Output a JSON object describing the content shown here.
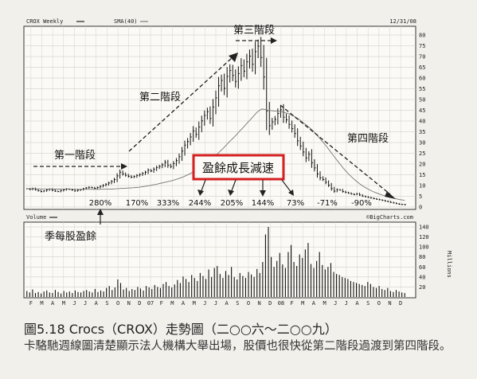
{
  "chart_data": {
    "type": "bar+line",
    "header": {
      "ticker_legend": "CROX Weekly",
      "ma_legend": "SMA(40)",
      "date": "12/31/08",
      "volume_legend": "Volume",
      "source": "©BigCharts.com"
    },
    "price_axis": {
      "ticks": [
        "0",
        "5",
        "10",
        "15",
        "20",
        "25",
        "30",
        "35",
        "40",
        "45",
        "50",
        "55",
        "60",
        "65",
        "70",
        "75",
        "80"
      ],
      "ylim": [
        0,
        80
      ]
    },
    "volume_axis": {
      "ticks": [
        "20",
        "40",
        "60",
        "80",
        "100",
        "120",
        "140"
      ],
      "ylim": [
        0,
        140
      ],
      "unit": "Millions"
    },
    "x_labels": [
      "F",
      "M",
      "A",
      "M",
      "J",
      "J",
      "A",
      "S",
      "O",
      "N",
      "D",
      "07",
      "F",
      "M",
      "A",
      "M",
      "J",
      "J",
      "A",
      "S",
      "O",
      "N",
      "D",
      "08",
      "F",
      "M",
      "A",
      "M",
      "J",
      "J",
      "A",
      "S",
      "O",
      "N",
      "D"
    ],
    "price_close": [
      8.5,
      8.2,
      8.6,
      8.1,
      7.6,
      7.2,
      7.5,
      7.9,
      8.3,
      7.8,
      7.4,
      7.2,
      7.6,
      8.0,
      8.4,
      8.2,
      7.9,
      7.5,
      7.8,
      8.1,
      8.5,
      8.9,
      9.2,
      9.0,
      8.7,
      9.1,
      9.6,
      10.1,
      10.6,
      11.2,
      11.9,
      12.8,
      14.5,
      16.2,
      15.4,
      14.8,
      14.3,
      13.9,
      14.2,
      14.7,
      15.1,
      15.6,
      16.2,
      17.1,
      16.8,
      17.6,
      18.4,
      18.9,
      19.6,
      20.8,
      19.4,
      18.8,
      20.2,
      21.6,
      23.4,
      26.0,
      28.8,
      30.5,
      32.6,
      35.4,
      33.8,
      37.2,
      40.1,
      42.6,
      44.3,
      41.2,
      46.5,
      50.8,
      56.4,
      58.9,
      55.2,
      60.8,
      63.5,
      61.2,
      58.4,
      62.1,
      65.8,
      63.2,
      67.5,
      70.2,
      66.4,
      72.3,
      74.8,
      69.5,
      60.5,
      44.6,
      37.8,
      39.6,
      40.8,
      43.5,
      45.2,
      41.8,
      40.6,
      38.4,
      36.5,
      34.2,
      30.8,
      28.4,
      25.6,
      22.8,
      24.5,
      20.6,
      18.2,
      15.4,
      13.6,
      12.8,
      11.5,
      10.2,
      8.6,
      7.4,
      8.1,
      7.9,
      7.2,
      6.8,
      6.5,
      6.1,
      5.8,
      6.2,
      5.6,
      5.1,
      4.8,
      4.5,
      4.2,
      3.9,
      3.6,
      3.4,
      3.1,
      2.8,
      2.5,
      2.2,
      1.9,
      1.6,
      1.3,
      1.2,
      1.1
    ],
    "sma40": [
      8.5,
      8.48,
      8.47,
      8.45,
      8.43,
      8.41,
      8.4,
      8.39,
      8.38,
      8.36,
      8.35,
      8.34,
      8.33,
      8.32,
      8.31,
      8.3,
      8.29,
      8.28,
      8.27,
      8.26,
      8.26,
      8.25,
      8.25,
      8.24,
      8.24,
      8.24,
      8.25,
      8.26,
      8.28,
      8.31,
      8.35,
      8.4,
      8.48,
      8.58,
      8.66,
      8.74,
      8.82,
      8.9,
      8.98,
      9.07,
      9.18,
      9.36,
      9.55,
      9.79,
      10.0,
      10.3,
      10.5,
      10.8,
      11.1,
      11.4,
      11.7,
      12.0,
      12.3,
      12.7,
      13.1,
      13.6,
      14.1,
      14.7,
      15.3,
      16.0,
      16.7,
      17.5,
      18.3,
      19.2,
      20.1,
      21.0,
      22.1,
      23.3,
      24.6,
      25.9,
      27.1,
      28.5,
      29.9,
      31.2,
      32.4,
      33.8,
      35.3,
      36.6,
      38.0,
      39.5,
      40.8,
      42.3,
      43.8,
      44.9,
      45.6,
      45.4,
      45.1,
      44.9,
      44.7,
      44.6,
      44.5,
      44.3,
      44.0,
      43.6,
      43.1,
      42.5,
      41.8,
      41.0,
      40.0,
      38.9,
      38.0,
      36.9,
      35.7,
      34.3,
      32.9,
      31.4,
      29.9,
      28.3,
      26.6,
      24.8,
      23.1,
      21.4,
      19.8,
      18.2,
      16.7,
      15.3,
      14.0,
      12.8,
      11.7,
      10.7,
      9.8,
      9.0,
      8.3,
      7.6,
      7.0,
      6.5,
      6.0,
      5.6,
      5.2,
      4.8,
      4.4,
      4.1,
      3.8,
      3.5,
      3.3,
      3.1
    ],
    "volume_millions": [
      12,
      9,
      15,
      8,
      10,
      7,
      11,
      13,
      9,
      8,
      14,
      10,
      7,
      12,
      9,
      11,
      8,
      13,
      10,
      9,
      12,
      14,
      11,
      9,
      16,
      10,
      13,
      11,
      18,
      22,
      14,
      19,
      35,
      28,
      15,
      18,
      12,
      16,
      14,
      20,
      17,
      13,
      22,
      19,
      16,
      24,
      20,
      18,
      26,
      30,
      22,
      19,
      25,
      34,
      28,
      41,
      36,
      30,
      44,
      38,
      32,
      48,
      42,
      36,
      55,
      40,
      58,
      62,
      46,
      38,
      52,
      44,
      60,
      40,
      35,
      48,
      42,
      38,
      50,
      45,
      40,
      56,
      48,
      70,
      125,
      140,
      80,
      60,
      72,
      88,
      65,
      58,
      90,
      104,
      70,
      62,
      85,
      78,
      95,
      108,
      66,
      58,
      72,
      90,
      64,
      55,
      60,
      68,
      50,
      46,
      44,
      40,
      38,
      36,
      32,
      30,
      28,
      26,
      24,
      22,
      30,
      26,
      20,
      18,
      22,
      16,
      14,
      18,
      12,
      10,
      14,
      11,
      9,
      8
    ],
    "stage_labels": [
      "第一階段",
      "第二階段",
      "第三階段",
      "第四階段"
    ],
    "eps_growth": [
      "280%",
      "170%",
      "333%",
      "244%",
      "205%",
      "144%",
      "73%",
      "-71%",
      "-90%"
    ],
    "eps_label": "季每股盈餘",
    "highlight_label": "盈餘成長減速"
  },
  "caption": {
    "title": "圖5.18 Crocs（CROX）走勢圖（二○○六～二○○九）",
    "body": "卡駱馳週線圖清楚顯示法人機構大舉出場，股價也很快從第二階段過渡到第四階段。"
  }
}
